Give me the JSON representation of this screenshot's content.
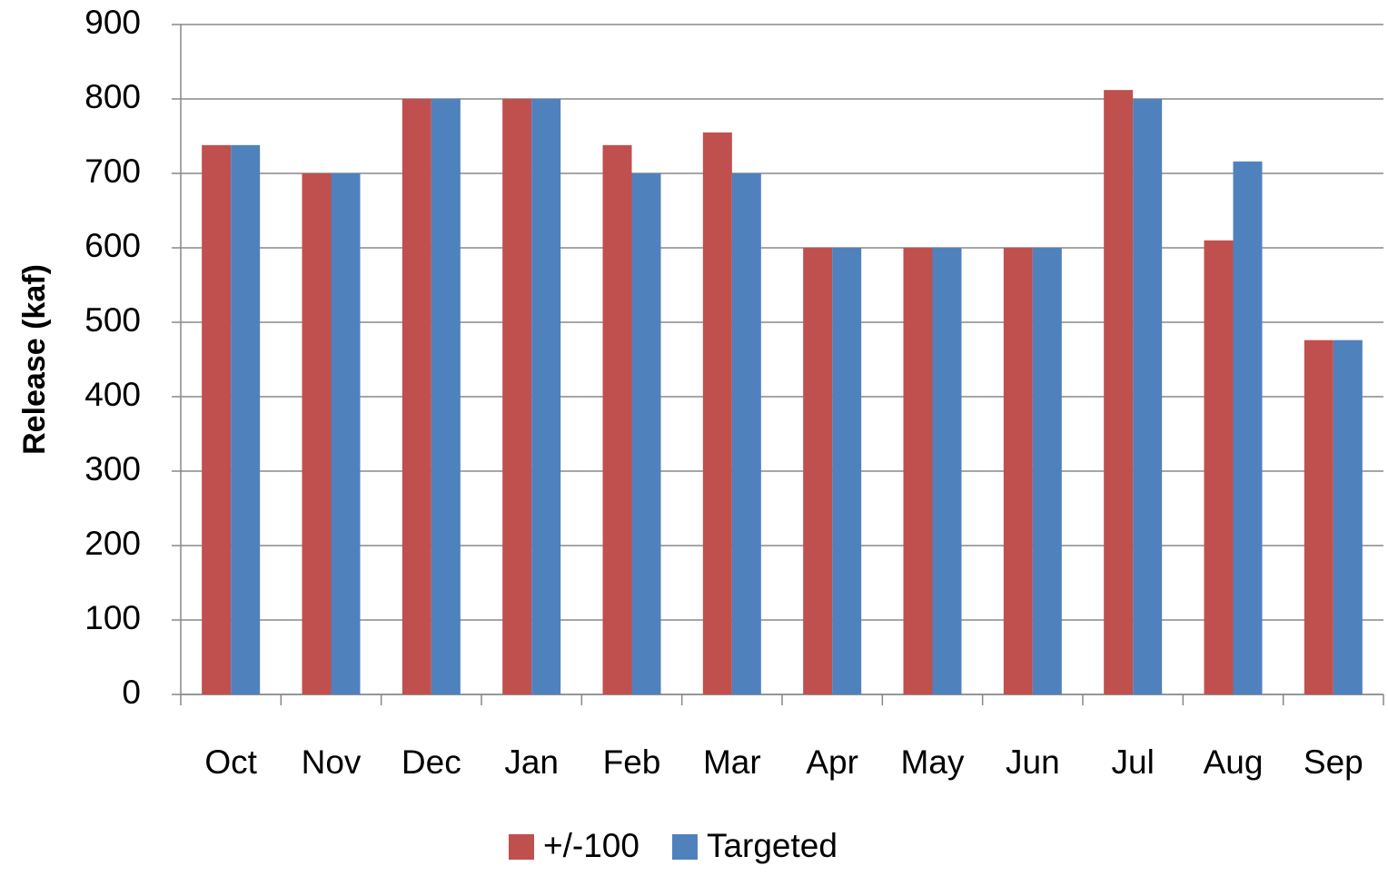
{
  "chart_data": {
    "type": "bar",
    "y_label": "Release (kaf)",
    "categories": [
      "Oct",
      "Nov",
      "Dec",
      "Jan",
      "Feb",
      "Mar",
      "Apr",
      "May",
      "Jun",
      "Jul",
      "Aug",
      "Sep"
    ],
    "series": [
      {
        "name": "+/-100",
        "color": "#c0504d",
        "values": [
          738,
          700,
          800,
          800,
          738,
          755,
          600,
          600,
          600,
          812,
          610,
          476
        ]
      },
      {
        "name": "Targeted",
        "color": "#4f81bd",
        "values": [
          738,
          700,
          800,
          800,
          700,
          700,
          600,
          600,
          600,
          800,
          716,
          476
        ]
      }
    ],
    "ylim": [
      0,
      900
    ],
    "yticks": [
      0,
      100,
      200,
      300,
      400,
      500,
      600,
      700,
      800,
      900
    ],
    "grid": true,
    "legend": "bottom"
  }
}
